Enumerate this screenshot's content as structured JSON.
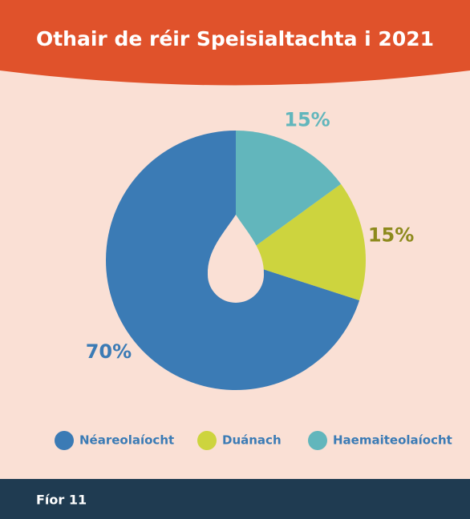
{
  "chart_data": {
    "type": "pie",
    "title": "Othair de réir Speisialtachta i 2021",
    "categories": [
      "Néareolaíocht",
      "Duánach",
      "Haemaiteolaíocht"
    ],
    "values": [
      70,
      15,
      15
    ],
    "value_labels": [
      "70%",
      "15%",
      "15%"
    ],
    "colors": [
      "#3b7bb5",
      "#cdd43e",
      "#62b6bc"
    ],
    "label_colors": [
      "#3b7bb5",
      "#8d8a1c",
      "#62b6bc"
    ],
    "legend": "bottom"
  },
  "footer": {
    "label": "Fíor 11"
  }
}
